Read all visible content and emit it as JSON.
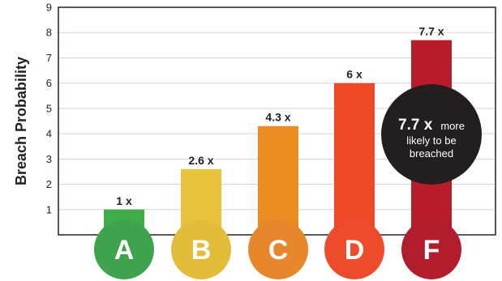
{
  "chart_data": {
    "type": "bar",
    "ylabel": "Breach Probability",
    "ylim": [
      0,
      9
    ],
    "yticks": [
      1,
      2,
      3,
      4,
      5,
      6,
      7,
      8,
      9
    ],
    "grid": true,
    "categories": [
      "A",
      "B",
      "C",
      "D",
      "F"
    ],
    "values": [
      1,
      2.6,
      4.3,
      6,
      7.7
    ],
    "data_labels": [
      "1 x",
      "2.6 x",
      "4.3 x",
      "6 x",
      "7.7 x"
    ],
    "colors": [
      "#3fae49",
      "#e8c23a",
      "#ea8c22",
      "#ef4a27",
      "#b81c29"
    ],
    "grade_colors": [
      "#3fa34d",
      "#e3bd3a",
      "#e8862b",
      "#ee4b2b",
      "#b11d2c"
    ],
    "annotation": {
      "highlight": "7.7 x",
      "text_1": "more",
      "text_2": "likely to be",
      "text_3": "breached",
      "color": "#231f20"
    }
  }
}
